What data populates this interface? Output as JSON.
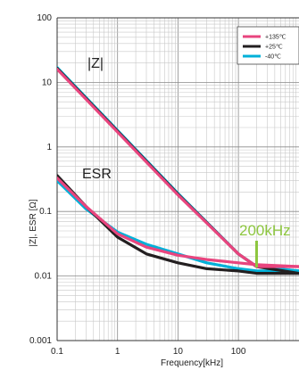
{
  "chart_data": {
    "type": "line",
    "xlabel": "Frequency[kHz]",
    "ylabel": "|Z|, ESR [Ω]",
    "x_scale": "log",
    "y_scale": "log",
    "xlim": [
      0.1,
      1000
    ],
    "ylim": [
      0.001,
      100
    ],
    "x_ticks": [
      "0.1",
      "1",
      "10",
      "100"
    ],
    "y_ticks": [
      "100",
      "10",
      "1",
      "0.1",
      "0.01",
      "0.001"
    ],
    "grid": true,
    "legend_position": "top-right",
    "annotations": {
      "z_label": "|Z|",
      "esr_label": "ESR",
      "marker_label": "200kHz",
      "marker_x": 200
    },
    "series": [
      {
        "name": "+135℃",
        "color": "#e8457e",
        "z": {
          "x": [
            0.1,
            1,
            10,
            100,
            200,
            1000
          ],
          "y": [
            16,
            1.7,
            0.18,
            0.022,
            0.014,
            0.014
          ]
        },
        "esr": {
          "x": [
            0.1,
            0.3,
            1,
            3,
            10,
            30,
            100,
            200,
            1000
          ],
          "y": [
            0.33,
            0.12,
            0.045,
            0.028,
            0.021,
            0.018,
            0.016,
            0.015,
            0.014
          ]
        }
      },
      {
        "name": "+25℃",
        "color": "#231f20",
        "z": {
          "x": [
            0.1,
            1,
            10,
            100,
            200,
            1000
          ],
          "y": [
            16.5,
            1.75,
            0.185,
            0.022,
            0.014,
            0.011
          ]
        },
        "esr": {
          "x": [
            0.1,
            0.3,
            1,
            3,
            10,
            30,
            100,
            200,
            1000
          ],
          "y": [
            0.36,
            0.12,
            0.04,
            0.022,
            0.016,
            0.013,
            0.012,
            0.011,
            0.011
          ]
        }
      },
      {
        "name": "-40℃",
        "color": "#00b0d8",
        "z": {
          "x": [
            0.1,
            1,
            10,
            100,
            200,
            1000
          ],
          "y": [
            17,
            1.8,
            0.19,
            0.022,
            0.014,
            0.012
          ]
        },
        "esr": {
          "x": [
            0.1,
            0.3,
            1,
            3,
            10,
            30,
            100,
            200,
            1000
          ],
          "y": [
            0.3,
            0.11,
            0.048,
            0.031,
            0.022,
            0.016,
            0.013,
            0.012,
            0.012
          ]
        }
      }
    ]
  }
}
